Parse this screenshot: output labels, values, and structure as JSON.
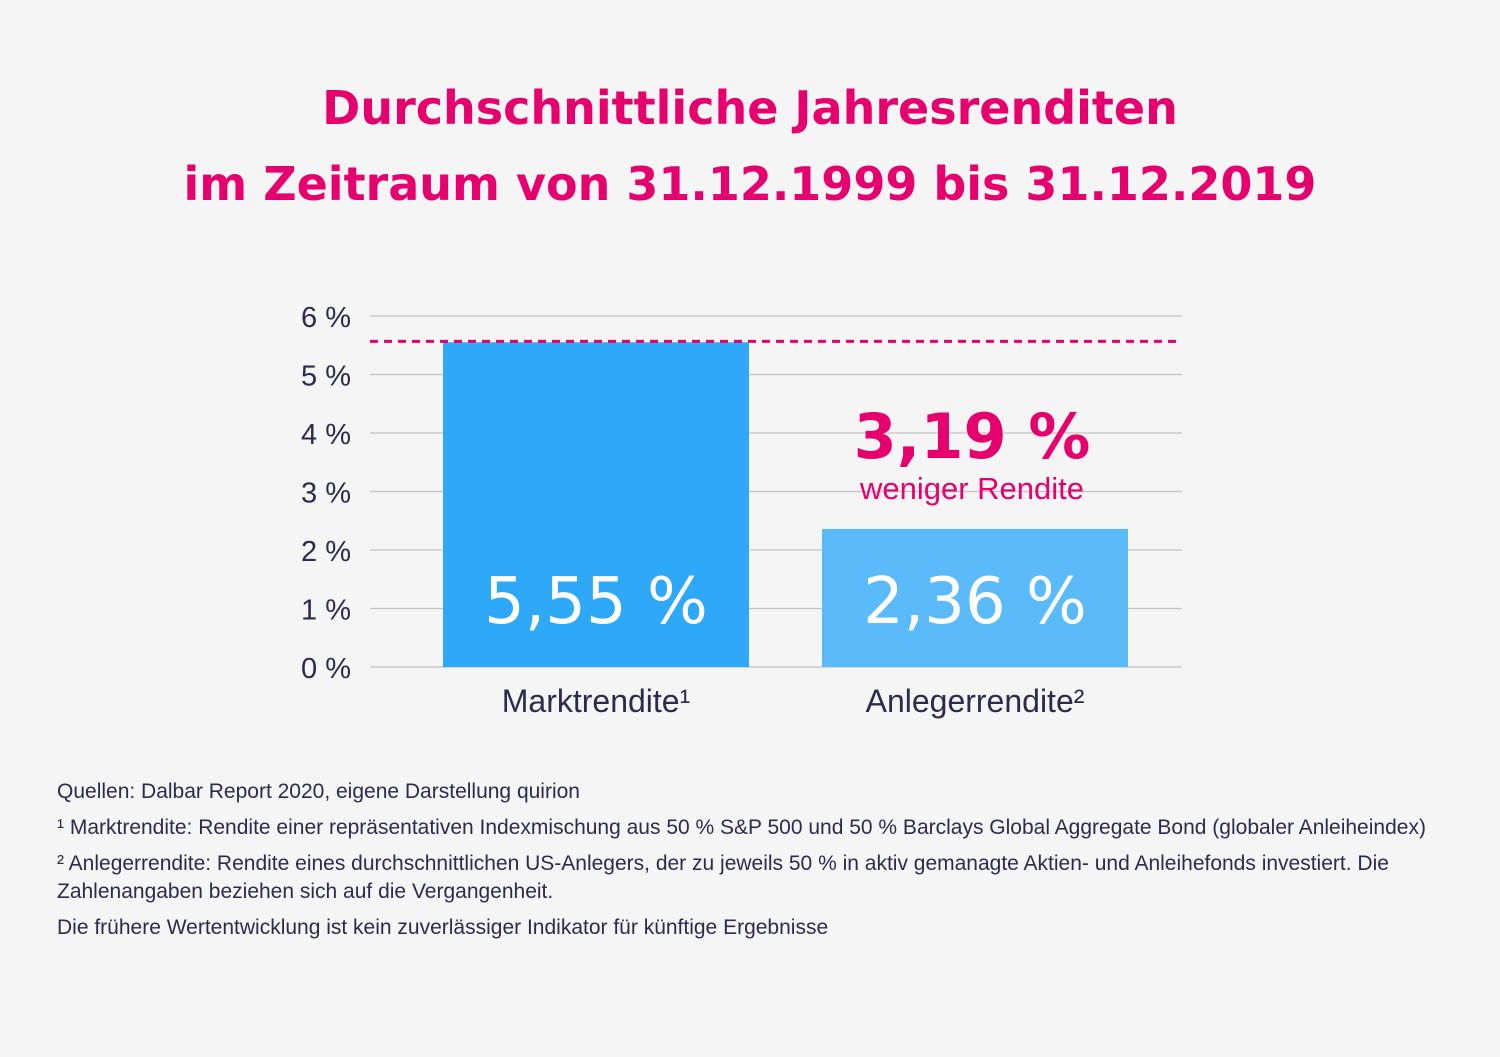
{
  "title_lines": [
    "Durchschnittliche Jahresrenditen",
    "im Zeitraum von 31.12.1999 bis 31.12.2019"
  ],
  "chart_data": {
    "type": "bar",
    "categories": [
      "Marktrendite¹",
      "Anlegerrendite²"
    ],
    "values": [
      5.55,
      2.36
    ],
    "value_labels": [
      "5,55 %",
      "2,36 %"
    ],
    "ylim": [
      0,
      6
    ],
    "yticks": [
      0,
      1,
      2,
      3,
      4,
      5,
      6
    ],
    "ytick_labels": [
      "0 %",
      "1 %",
      "2 %",
      "3 %",
      "4 %",
      "5 %",
      "6 %"
    ],
    "grid": true,
    "bar_colors": [
      "#2ea8f8",
      "#5bbbfa"
    ],
    "reference_line": {
      "value": 5.55,
      "style": "dotted",
      "color": "#e6006e"
    },
    "annotation": {
      "value_text": "3,19 %",
      "text": "weniger Rendite",
      "color": "#e6006e"
    }
  },
  "footnotes": [
    "Quellen: Dalbar Report 2020, eigene Darstellung quirion",
    "¹ Marktrendite: Rendite einer repräsentativen Indexmischung aus 50 % S&P 500 und 50 % Barclays Global Aggregate Bond (globaler Anleiheindex)",
    "² Anlegerrendite: Rendite eines durchschnittlichen US-Anlegers, der zu jeweils 50 % in aktiv gemanagte Aktien- und Anleihefonds investiert. Die Zahlenangaben beziehen sich auf die Vergangenheit.",
    "Die frühere Wertentwicklung ist kein zuverlässiger Indikator für künftige Ergebnisse"
  ]
}
